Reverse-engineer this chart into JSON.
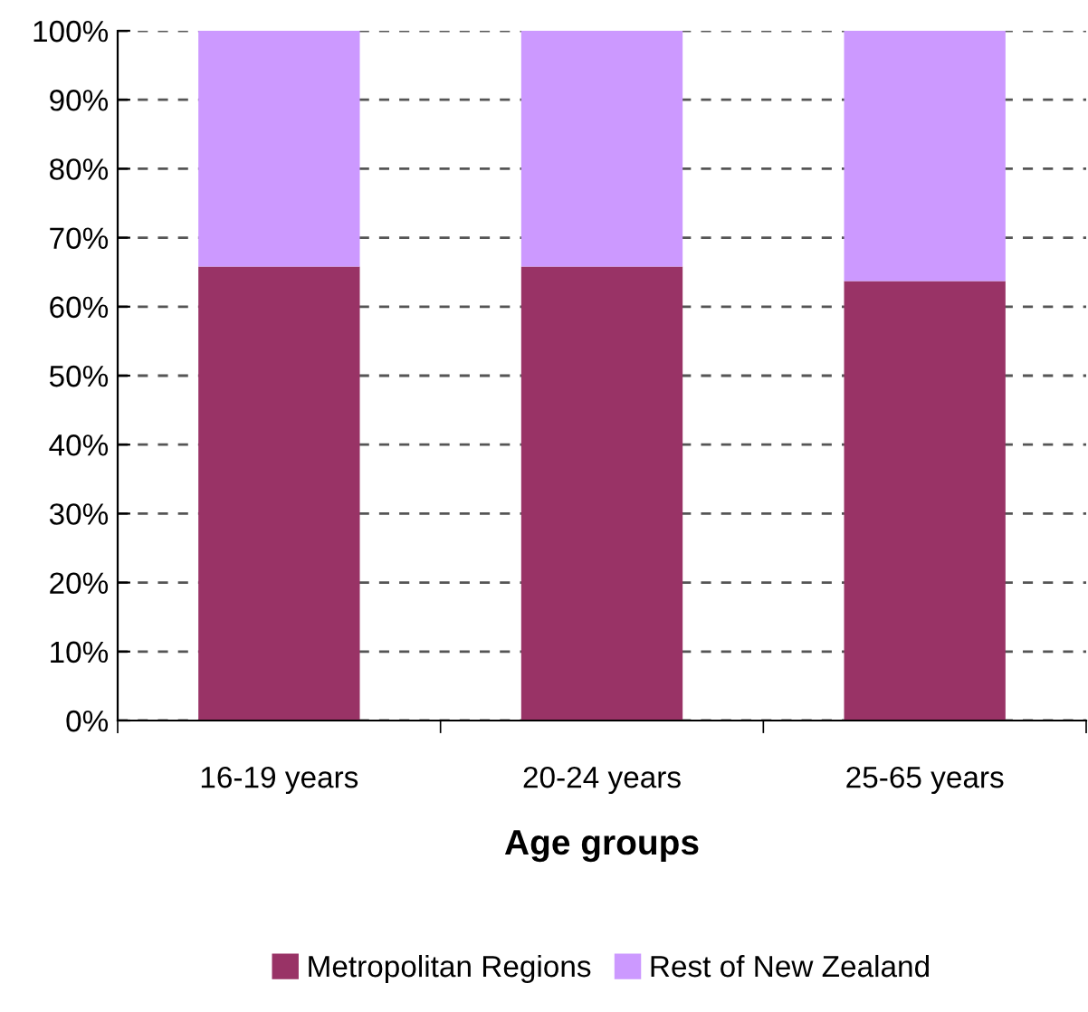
{
  "chart_data": {
    "type": "bar",
    "stacked": true,
    "xlabel": "Age groups",
    "categories": [
      "16-19 years",
      "20-24 years",
      "25-65 years"
    ],
    "series": [
      {
        "name": "Metropolitan Regions",
        "color": "#993366",
        "values": [
          65.8,
          65.8,
          63.7
        ]
      },
      {
        "name": "Rest of New Zealand",
        "color": "#cc99ff",
        "values": [
          34.2,
          34.2,
          36.3
        ]
      }
    ],
    "ylim": [
      0,
      100
    ],
    "yticks": [
      {
        "value": 0,
        "label": "0%"
      },
      {
        "value": 10,
        "label": "10%"
      },
      {
        "value": 20,
        "label": "20%"
      },
      {
        "value": 30,
        "label": "30%"
      },
      {
        "value": 40,
        "label": "40%"
      },
      {
        "value": 50,
        "label": "50%"
      },
      {
        "value": 60,
        "label": "60%"
      },
      {
        "value": 70,
        "label": "70%"
      },
      {
        "value": 80,
        "label": "80%"
      },
      {
        "value": 90,
        "label": "90%"
      },
      {
        "value": 100,
        "label": "100%"
      }
    ],
    "grid": "y",
    "line_style": "dashed",
    "legend": "bottom"
  }
}
